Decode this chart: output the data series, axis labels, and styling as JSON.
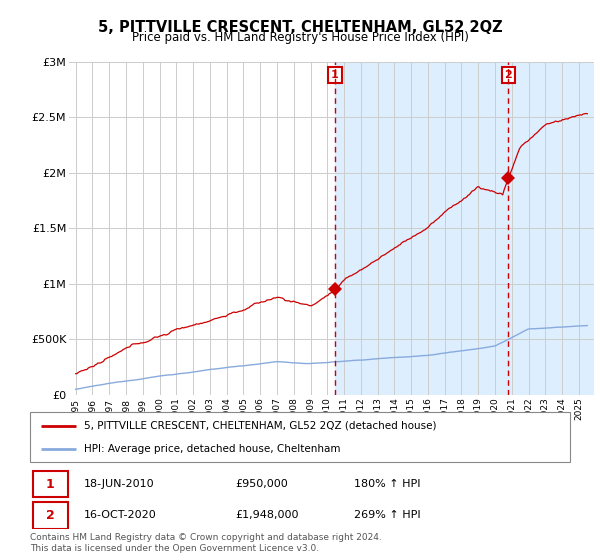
{
  "title": "5, PITTVILLE CRESCENT, CHELTENHAM, GL52 2QZ",
  "subtitle": "Price paid vs. HM Land Registry's House Price Index (HPI)",
  "legend_line1": "5, PITTVILLE CRESCENT, CHELTENHAM, GL52 2QZ (detached house)",
  "legend_line2": "HPI: Average price, detached house, Cheltenham",
  "annotation1_label": "1",
  "annotation1_date": "18-JUN-2010",
  "annotation1_price": "£950,000",
  "annotation1_hpi": "180% ↑ HPI",
  "annotation1_year": 2010.46,
  "annotation1_value": 950000,
  "annotation2_label": "2",
  "annotation2_date": "16-OCT-2020",
  "annotation2_price": "£1,948,000",
  "annotation2_hpi": "269% ↑ HPI",
  "annotation2_year": 2020.79,
  "annotation2_value": 1948000,
  "footer": "Contains HM Land Registry data © Crown copyright and database right 2024.\nThis data is licensed under the Open Government Licence v3.0.",
  "ylim": [
    0,
    3000000
  ],
  "yticks": [
    0,
    500000,
    1000000,
    1500000,
    2000000,
    2500000,
    3000000
  ],
  "ytick_labels": [
    "£0",
    "£500K",
    "£1M",
    "£1.5M",
    "£2M",
    "£2.5M",
    "£3M"
  ],
  "property_color": "#cc0000",
  "hpi_color": "#88aadd",
  "shade_color": "#ddeeff",
  "hatch_color": "#cccccc",
  "plot_bg": "#ffffff",
  "shade_start": 2010.46,
  "shade_end": 2025.9,
  "hatch_start": 2021.5,
  "hatch_end": 2025.9,
  "xmin": 1994.6,
  "xmax": 2025.9
}
